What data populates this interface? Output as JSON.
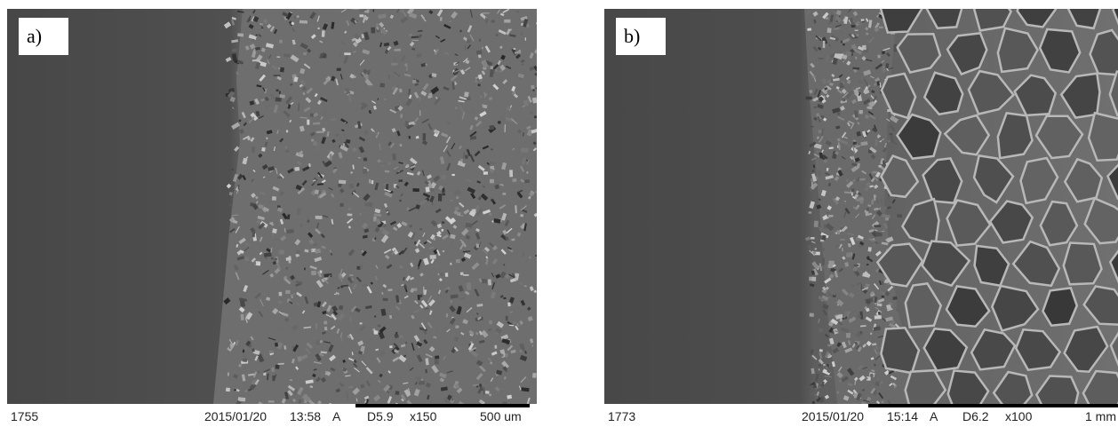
{
  "panels": [
    {
      "label": "a)",
      "footer": {
        "image_number": "1755",
        "date": "2015/01/20",
        "time": "13:58",
        "mode": "A",
        "working_distance": "D5.9",
        "magnification": "x150",
        "scale_label": "500 um"
      }
    },
    {
      "label": "b)",
      "footer": {
        "image_number": "1773",
        "date": "2015/01/20",
        "time": "15:14",
        "mode": "A",
        "working_distance": "D6.2",
        "magnification": "x100",
        "scale_label": "1 mm"
      }
    }
  ]
}
